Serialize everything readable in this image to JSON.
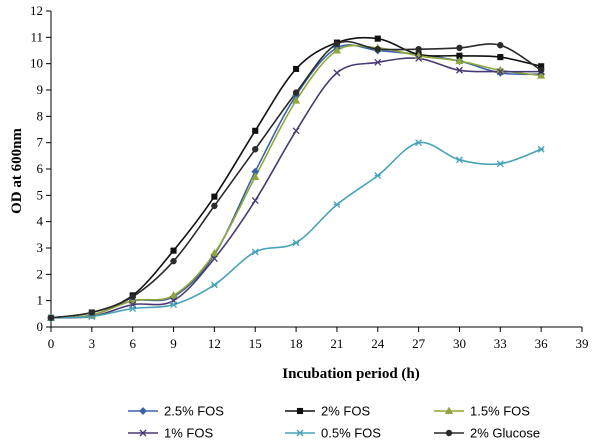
{
  "chart_data": {
    "type": "line",
    "xlabel": "Incubation period (h)",
    "ylabel": "OD at 600nm",
    "xlim": [
      0,
      39
    ],
    "ylim": [
      0,
      12
    ],
    "xticks": [
      0,
      3,
      6,
      9,
      12,
      15,
      18,
      21,
      24,
      27,
      30,
      33,
      36,
      39
    ],
    "yticks": [
      0,
      1,
      2,
      3,
      4,
      5,
      6,
      7,
      8,
      9,
      10,
      11,
      12
    ],
    "grid": false,
    "legend_position": "bottom",
    "x": [
      0,
      3,
      6,
      9,
      12,
      15,
      18,
      21,
      24,
      27,
      30,
      33,
      36
    ],
    "series": [
      {
        "name": "2.5% FOS",
        "color": "#3a63a8",
        "marker": "diamond",
        "values": [
          0.35,
          0.45,
          1.0,
          1.15,
          2.75,
          5.9,
          8.8,
          10.6,
          10.5,
          10.35,
          10.1,
          9.65,
          9.6
        ]
      },
      {
        "name": "2% FOS",
        "color": "#111111",
        "marker": "square",
        "values": [
          0.35,
          0.55,
          1.2,
          2.9,
          4.95,
          7.45,
          9.8,
          10.8,
          10.95,
          10.35,
          10.3,
          10.25,
          9.9
        ]
      },
      {
        "name": "1.5% FOS",
        "color": "#8fa63a",
        "marker": "triangle",
        "values": [
          0.35,
          0.45,
          1.0,
          1.2,
          2.8,
          5.7,
          8.6,
          10.5,
          10.6,
          10.3,
          10.1,
          9.75,
          9.55
        ]
      },
      {
        "name": "1% FOS",
        "color": "#4a3a73",
        "marker": "x",
        "values": [
          0.35,
          0.4,
          0.85,
          1.0,
          2.6,
          4.8,
          7.45,
          9.65,
          10.05,
          10.2,
          9.75,
          9.7,
          9.7
        ]
      },
      {
        "name": "0.5% FOS",
        "color": "#4aa3b8",
        "marker": "star",
        "values": [
          0.35,
          0.4,
          0.7,
          0.85,
          1.6,
          2.85,
          3.2,
          4.65,
          5.75,
          7.0,
          6.35,
          6.2,
          6.75
        ]
      },
      {
        "name": "2% Glucose",
        "color": "#2b2b2b",
        "marker": "circle",
        "values": [
          0.35,
          0.55,
          1.15,
          2.5,
          4.6,
          6.75,
          8.9,
          10.75,
          10.55,
          10.55,
          10.6,
          10.7,
          9.75
        ]
      }
    ]
  }
}
